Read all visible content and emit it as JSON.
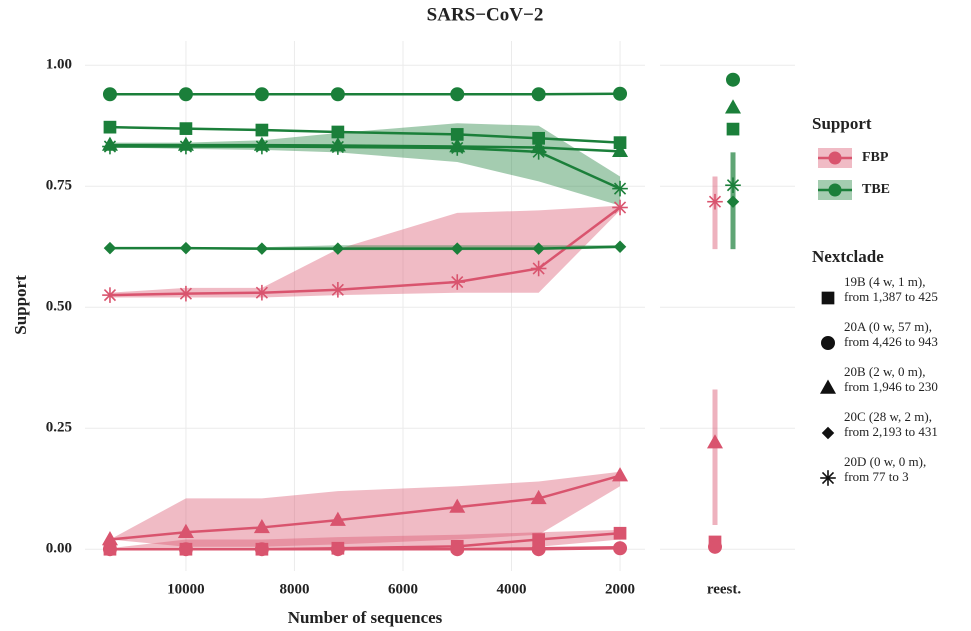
{
  "chart_data": {
    "type": "line",
    "title": "SARS−CoV−2",
    "x_label": "Number of sequences",
    "y_label": "Support",
    "x": [
      11400,
      10000,
      8600,
      7200,
      5000,
      3500,
      2000
    ],
    "xlim": [
      11860,
      1540
    ],
    "xticks": [
      10000,
      8000,
      6000,
      4000,
      2000
    ],
    "ylim": [
      -0.045,
      1.05
    ],
    "yticks": [
      {
        "value": 0,
        "label": "0.00"
      },
      {
        "value": 0.25,
        "label": "0.25"
      },
      {
        "value": 0.5,
        "label": "0.50"
      },
      {
        "value": 0.75,
        "label": "0.75"
      },
      {
        "value": 1,
        "label": "1.00"
      }
    ],
    "side_category": "reest.",
    "grid": true,
    "methods_title": "Support",
    "clades_title": "Nextclade",
    "clades": [
      {
        "label": [
          "19B (4 w, 1 m),",
          "from 1,387 to 425"
        ],
        "shape": "square"
      },
      {
        "label": [
          "20A (0 w, 57 m),",
          "from 4,426 to 943"
        ],
        "shape": "circle"
      },
      {
        "label": [
          "20B (2 w, 0 m),",
          "from 1,946 to 230"
        ],
        "shape": "triangle"
      },
      {
        "label": [
          "20C (28 w, 2 m),",
          "from 2,193 to 431"
        ],
        "shape": "diamond"
      },
      {
        "label": [
          "20D (0 w, 0 m),",
          "from 77 to 3"
        ],
        "shape": "star"
      }
    ],
    "methods": [
      {
        "name": "FBP",
        "color": "#d9546e",
        "series": [
          {
            "values": [
              0,
              0,
              0,
              0.002,
              0.006,
              0.02,
              0.033
            ],
            "lower": [
              0,
              0,
              0,
              0,
              0,
              0.005,
              0.02
            ],
            "upper": [
              0.002,
              0.02,
              0.02,
              0.025,
              0.03,
              0.035,
              0.04
            ],
            "reest": 0.015
          },
          {
            "values": [
              0,
              0,
              0,
              0,
              0,
              0,
              0.002
            ],
            "reest": 0.005
          },
          {
            "values": [
              0.02,
              0.035,
              0.045,
              0.06,
              0.087,
              0.105,
              0.152
            ],
            "lower": [
              0.02,
              0.005,
              0.005,
              0.01,
              0.02,
              0.03,
              0.13
            ],
            "upper": [
              0.02,
              0.105,
              0.105,
              0.12,
              0.13,
              0.14,
              0.16
            ],
            "reest": 0.22,
            "reest_range": [
              0.05,
              0.33
            ]
          },
          {
            "values": [
              0,
              0,
              0,
              0,
              0,
              0.002,
              0.004
            ],
            "reest": 0.003
          },
          {
            "values": [
              0.525,
              0.528,
              0.53,
              0.536,
              0.552,
              0.58,
              0.706
            ],
            "lower": [
              0.52,
              0.52,
              0.52,
              0.525,
              0.53,
              0.53,
              0.7
            ],
            "upper": [
              0.53,
              0.54,
              0.54,
              0.62,
              0.695,
              0.7,
              0.71
            ],
            "reest": 0.718,
            "reest_range": [
              0.62,
              0.77
            ]
          }
        ]
      },
      {
        "name": "TBE",
        "color": "#1b7f3a",
        "series": [
          {
            "values": [
              0.872,
              0.869,
              0.866,
              0.862,
              0.857,
              0.849,
              0.84
            ],
            "reest": 0.868
          },
          {
            "values": [
              0.94,
              0.94,
              0.94,
              0.94,
              0.94,
              0.94,
              0.941
            ],
            "reest": 0.97
          },
          {
            "values": [
              0.835,
              0.835,
              0.835,
              0.834,
              0.832,
              0.83,
              0.822
            ],
            "reest": 0.912
          },
          {
            "values": [
              0.622,
              0.622,
              0.621,
              0.621,
              0.621,
              0.621,
              0.625
            ],
            "lower": [
              0.62,
              0.62,
              0.618,
              0.618,
              0.618,
              0.618,
              0.622
            ],
            "upper": [
              0.624,
              0.624,
              0.624,
              0.628,
              0.628,
              0.628,
              0.628
            ],
            "reest": 0.718,
            "reest_range": [
              0.62,
              0.82
            ]
          },
          {
            "values": [
              0.832,
              0.832,
              0.832,
              0.831,
              0.829,
              0.821,
              0.745
            ],
            "lower": [
              0.83,
              0.827,
              0.825,
              0.82,
              0.8,
              0.76,
              0.71
            ],
            "upper": [
              0.84,
              0.84,
              0.845,
              0.86,
              0.88,
              0.875,
              0.77
            ],
            "reest": 0.752,
            "reest_range": [
              0.62,
              0.82
            ]
          }
        ]
      }
    ]
  }
}
